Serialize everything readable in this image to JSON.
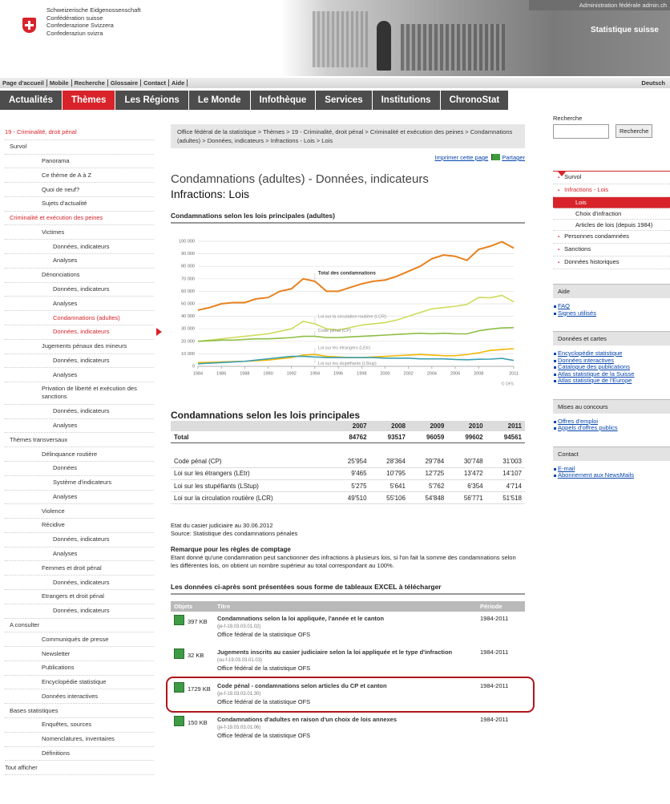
{
  "header": {
    "confederation": [
      "Schweizerische Eidgenossenschaft",
      "Confédération suisse",
      "Confederazione Svizzera",
      "Confederaziun svizra"
    ],
    "admin": "Administration fédérale admin.ch",
    "site": "Statistique suisse"
  },
  "top_links": [
    "Page d'accueil",
    "Mobile",
    "Recherche",
    "Glossaire",
    "Contact",
    "Aide"
  ],
  "language": "Deutsch",
  "main_nav": {
    "items": [
      "Actualités",
      "Thèmes",
      "Les Régions",
      "Le Monde",
      "Infothèque",
      "Services",
      "Institutions",
      "ChronoStat"
    ],
    "active": 1
  },
  "left_nav": [
    {
      "label": "19 - Criminalité, droit pénal",
      "level": 0,
      "state": "section"
    },
    {
      "label": "Survol",
      "level": 1
    },
    {
      "label": "Panorama",
      "level": 2
    },
    {
      "label": "Ce thème de A à Z",
      "level": 2
    },
    {
      "label": "Quoi de neuf?",
      "level": 2
    },
    {
      "label": "Sujets d'actualité",
      "level": 2
    },
    {
      "label": "Criminalité et exécution des peines",
      "level": 1,
      "state": "section"
    },
    {
      "label": "Victimes",
      "level": 2
    },
    {
      "label": "Données, indicateurs",
      "level": 3
    },
    {
      "label": "Analyses",
      "level": 3
    },
    {
      "label": "Dénonciations",
      "level": 2
    },
    {
      "label": "Données, indicateurs",
      "level": 3
    },
    {
      "label": "Analyses",
      "level": 3
    },
    {
      "label": "Condamnations (adultes)",
      "level": 3,
      "state": "section"
    },
    {
      "label": "Données, indicateurs",
      "level": 3,
      "state": "current"
    },
    {
      "label": "Jugements pénaux des mineurs",
      "level": 2
    },
    {
      "label": "Données, indicateurs",
      "level": 3
    },
    {
      "label": "Analyses",
      "level": 3
    },
    {
      "label": "Privation de liberté et exécution des sanctions",
      "level": 2
    },
    {
      "label": "Données, indicateurs",
      "level": 3
    },
    {
      "label": "Analyses",
      "level": 3
    },
    {
      "label": "Thèmes transversaux",
      "level": 1
    },
    {
      "label": "Délinquance routière",
      "level": 2
    },
    {
      "label": "Données",
      "level": 3
    },
    {
      "label": "Système d'indicateurs",
      "level": 3
    },
    {
      "label": "Analyses",
      "level": 3
    },
    {
      "label": "Violence",
      "level": 2
    },
    {
      "label": "Récidive",
      "level": 2
    },
    {
      "label": "Données, indicateurs",
      "level": 3
    },
    {
      "label": "Analyses",
      "level": 3
    },
    {
      "label": "Femmes et droit pénal",
      "level": 2
    },
    {
      "label": "Données, indicateurs",
      "level": 3
    },
    {
      "label": "Etrangers et droit pénal",
      "level": 2
    },
    {
      "label": "Données, indicateurs",
      "level": 3
    },
    {
      "label": "A consulter",
      "level": 1
    },
    {
      "label": "Communiqués de presse",
      "level": 2
    },
    {
      "label": "Newsletter",
      "level": 2
    },
    {
      "label": "Publications",
      "level": 2
    },
    {
      "label": "Encyclopédie statistique",
      "level": 2
    },
    {
      "label": "Données interactives",
      "level": 2
    },
    {
      "label": "Bases statistiques",
      "level": 1
    },
    {
      "label": "Enquêtes, sources",
      "level": 2
    },
    {
      "label": "Nomenclatures, inventaires",
      "level": 2
    },
    {
      "label": "Définitions",
      "level": 2
    },
    {
      "label": "Tout afficher",
      "level": 0
    }
  ],
  "breadcrumb": "Office fédéral de la statistique > Thèmes > 19 - Criminalité, droit pénal > Criminalité et exécution des peines > Condamnations (adultes) > Données, indicateurs > Infractions - Lois > Lois",
  "tools": {
    "print": "Imprimer cette page",
    "share": "Partager"
  },
  "page_title": "Condamnations (adultes) - Données, indicateurs",
  "page_subtitle": "Infractions: Lois",
  "chart_heading": "Condamnations selon les lois principales (adultes)",
  "chart_data": {
    "type": "line",
    "x": [
      1984,
      1985,
      1986,
      1987,
      1988,
      1989,
      1990,
      1991,
      1992,
      1993,
      1994,
      1995,
      1996,
      1997,
      1998,
      1999,
      2000,
      2001,
      2002,
      2003,
      2004,
      2005,
      2006,
      2007,
      2008,
      2009,
      2010,
      2011
    ],
    "xlim": [
      1984,
      2011
    ],
    "xticks": [
      1984,
      1986,
      1988,
      1990,
      1992,
      1994,
      1996,
      1998,
      2000,
      2002,
      2004,
      2006,
      2008,
      2011
    ],
    "ylim": [
      0,
      100000
    ],
    "yticks": [
      0,
      {
        "value": 10000,
        "label": "10 000"
      },
      {
        "value": 20000,
        "label": "20 000"
      },
      {
        "value": 30000,
        "label": "30 000"
      },
      {
        "value": 40000,
        "label": "40 000"
      },
      {
        "value": 50000,
        "label": "50 000"
      },
      {
        "value": 60000,
        "label": "60 000"
      },
      {
        "value": 70000,
        "label": "70 000"
      },
      {
        "value": 80000,
        "label": "80 000"
      },
      {
        "value": 90000,
        "label": "90 000"
      },
      {
        "value": 100000,
        "label": "100 000"
      }
    ],
    "grid": true,
    "source": "© OFS",
    "series": [
      {
        "name": "Total des condamnations",
        "color": "#e8801c",
        "values": [
          45000,
          47000,
          50000,
          51000,
          51000,
          54000,
          55000,
          60000,
          62000,
          70000,
          68000,
          60000,
          60000,
          63000,
          66000,
          68000,
          69000,
          72000,
          76000,
          80000,
          86000,
          89000,
          88000,
          84762,
          93517,
          96059,
          99602,
          94561
        ]
      },
      {
        "name": "Loi sur la circulation routière (LCR)",
        "color": "#cddc5a",
        "values": [
          20000,
          21000,
          22000,
          23000,
          24000,
          25000,
          26000,
          28000,
          30000,
          36000,
          34000,
          30000,
          29000,
          31000,
          33000,
          34000,
          35000,
          37000,
          40000,
          43000,
          46000,
          47000,
          48000,
          49510,
          55106,
          54848,
          56771,
          51518
        ]
      },
      {
        "name": "Code pénal (CP)",
        "color": "#8cbf45",
        "values": [
          20000,
          20500,
          21000,
          21000,
          21500,
          22000,
          22000,
          22500,
          23000,
          24000,
          24000,
          23000,
          23000,
          23500,
          24000,
          24500,
          25000,
          25500,
          26000,
          26500,
          26000,
          26500,
          26000,
          25954,
          28364,
          29784,
          30748,
          31003
        ]
      },
      {
        "name": "Loi sur les étrangers (LEtr)",
        "color": "#f2b705",
        "values": [
          3000,
          3200,
          3500,
          3800,
          4000,
          4500,
          5000,
          6000,
          7000,
          9000,
          9500,
          8000,
          7500,
          7000,
          7000,
          7500,
          8000,
          8500,
          9000,
          9500,
          9000,
          8500,
          8500,
          9465,
          10795,
          12725,
          13472,
          14107
        ]
      },
      {
        "name": "Loi sur les stupéfiants (LStup)",
        "color": "#3a9fb2",
        "values": [
          2000,
          2500,
          3000,
          3500,
          4000,
          5000,
          6000,
          7000,
          8000,
          8000,
          7500,
          7000,
          7000,
          7000,
          7000,
          7000,
          6500,
          6500,
          6500,
          6000,
          6000,
          6000,
          5500,
          5275,
          5641,
          5762,
          6354,
          4714
        ]
      }
    ]
  },
  "table": {
    "title": "Condamnations selon les lois principales",
    "columns": [
      "2007",
      "2008",
      "2009",
      "2010",
      "2011"
    ],
    "rows": [
      {
        "label": "Total",
        "values": [
          "84762",
          "93517",
          "96059",
          "99602",
          "94561"
        ]
      },
      {
        "label": "Code pénal (CP)",
        "values": [
          "25'954",
          "28'364",
          "29'784",
          "30'748",
          "31'003"
        ]
      },
      {
        "label": "Loi sur les étrangers (LEtr)",
        "values": [
          "9'465",
          "10'795",
          "12'725",
          "13'472",
          "14'107"
        ]
      },
      {
        "label": "Loi sur les stupéfiants (LStup)",
        "values": [
          "5'275",
          "5'641",
          "5'762",
          "6'354",
          "4'714"
        ]
      },
      {
        "label": "Loi sur la circulation routière (LCR)",
        "values": [
          "49'510",
          "55'106",
          "54'848",
          "56'771",
          "51'518"
        ]
      }
    ]
  },
  "status": "Etat du casier judiciaire au 30.06.2012",
  "source": "Source: Statistique des condamnations pénales",
  "remark": {
    "title": "Remarque pour les règles de comptage",
    "text": "Etant donné qu'une condamnation peut sanctionner des infractions à plusieurs lois, si l'on fait la somme des condamnations selon les différentes lois, on obtient un nombre supérieur au total correspondant au 100%."
  },
  "downloads": {
    "heading": "Les données ci-après sont présentées sous forme de tableaux EXCEL à télécharger",
    "columns": [
      "Objets",
      "Titre",
      "Période"
    ],
    "items": [
      {
        "size": "397 KB",
        "title": "Condamnations selon la loi appliquée, l'année et le canton",
        "code": "(je-f-19.03.03.01.02)",
        "org": "Office fédéral de la statistique OFS",
        "period": "1984-2011"
      },
      {
        "size": "32 KB",
        "title": "Jugements inscrits au casier judiciaire selon la loi appliquée et le type d'infraction",
        "code": "(su-f-19.03.03.01.03)",
        "org": "Office fédéral de la statistique OFS",
        "period": "1984-2011"
      },
      {
        "size": "1729 KB",
        "title": "Code pénal - condamnations selon articles du CP et canton",
        "code": "(je-f-19.03.03.01.30)",
        "org": "Office fédéral de la statistique OFS",
        "period": "1984-2011",
        "highlight": true
      },
      {
        "size": "150 KB",
        "title": "Condamnations d'adultes en raison d'un choix de lois annexes",
        "code": "(je-f-19.03.03.01.06)",
        "org": "Office fédéral de la statistique OFS",
        "period": "1984-2011"
      }
    ]
  },
  "search": {
    "label": "Recherche",
    "button": "Recherche"
  },
  "right_nav": [
    {
      "label": "Survol",
      "level": 0
    },
    {
      "label": "Infractions - Lois",
      "level": 0,
      "state": "section"
    },
    {
      "label": "Lois",
      "level": 1,
      "state": "current"
    },
    {
      "label": "Choix d'infraction",
      "level": 1
    },
    {
      "label": "Articles de lois (depuis 1984)",
      "level": 1
    },
    {
      "label": "Personnes condamnées",
      "level": 0
    },
    {
      "label": "Sanctions",
      "level": 0
    },
    {
      "label": "Données historiques",
      "level": 0
    }
  ],
  "boxes": [
    {
      "title": "Aide",
      "links": [
        "FAQ",
        "Signes utilisés"
      ]
    },
    {
      "title": "Données et cartes",
      "links": [
        "Encyclopédie statistique",
        "Données interactives",
        "Catalogue des publications",
        "Atlas statistique de la Suisse",
        "Atlas statistique de l'Europe"
      ]
    },
    {
      "title": "Mises au concours",
      "links": [
        "Offres d'emploi",
        "Appels d'offres publics"
      ]
    },
    {
      "title": "Contact",
      "links": [
        "E-mail",
        "Abonnement aux NewsMails"
      ]
    }
  ]
}
